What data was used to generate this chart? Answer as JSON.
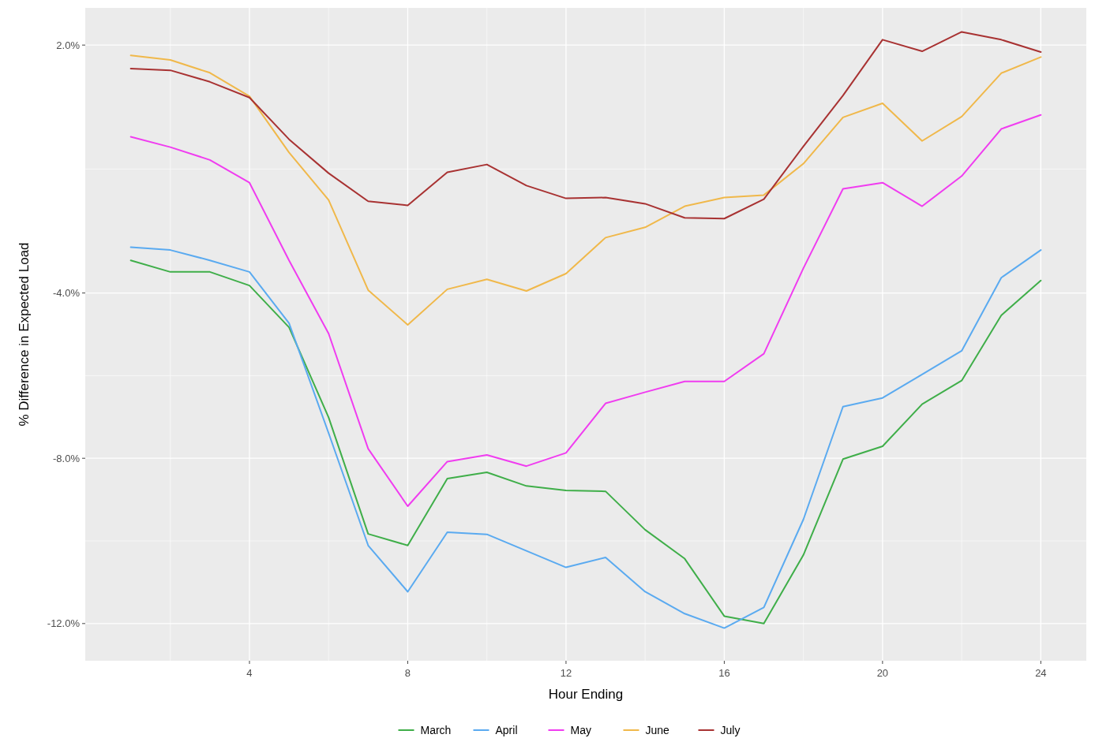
{
  "chart_data": {
    "type": "line",
    "xlabel": "Hour Ending",
    "ylabel": "% Difference in Expected Load",
    "x": [
      1,
      2,
      3,
      4,
      5,
      6,
      7,
      8,
      9,
      10,
      11,
      12,
      13,
      14,
      15,
      16,
      17,
      18,
      19,
      20,
      21,
      22,
      23,
      24
    ],
    "xlim": [
      -0.15,
      25.15
    ],
    "xticks": [
      4,
      8,
      12,
      16,
      20,
      24
    ],
    "ylim": [
      -12.9,
      2.9
    ],
    "yticks": [
      {
        "value": 2,
        "label": "2.0%"
      },
      {
        "value": -4,
        "label": "-4.0%"
      },
      {
        "value": -8,
        "label": "-8.0%"
      },
      {
        "value": -12,
        "label": "-12.0%"
      }
    ],
    "grid": true,
    "legend": "bottom",
    "marker": "none",
    "line_style": "solid",
    "series": [
      {
        "name": "March",
        "color": "#3fae49",
        "values": [
          -3.21,
          -3.49,
          -3.49,
          -3.82,
          -4.83,
          -7.01,
          -9.83,
          -10.11,
          -8.49,
          -8.34,
          -8.67,
          -8.78,
          -8.8,
          -9.73,
          -10.43,
          -11.82,
          -12.0,
          -10.34,
          -8.02,
          -7.71,
          -6.69,
          -6.12,
          -4.54,
          -3.7
        ]
      },
      {
        "name": "April",
        "color": "#5aaaf0",
        "values": [
          -2.89,
          -2.96,
          -3.21,
          -3.49,
          -4.73,
          -7.39,
          -10.11,
          -11.23,
          -9.79,
          -9.84,
          -10.24,
          -10.64,
          -10.4,
          -11.23,
          -11.76,
          -12.11,
          -11.61,
          -9.48,
          -6.75,
          -6.54,
          -5.97,
          -5.4,
          -3.63,
          -2.96
        ]
      },
      {
        "name": "May",
        "color": "#f03cf0",
        "values": [
          -0.22,
          -0.47,
          -0.78,
          -1.33,
          -3.21,
          -4.98,
          -7.77,
          -9.16,
          -8.08,
          -7.92,
          -8.19,
          -7.87,
          -6.67,
          -6.4,
          -6.14,
          -6.14,
          -5.47,
          -3.4,
          -1.48,
          -1.33,
          -1.9,
          -1.17,
          -0.03,
          0.31
        ]
      },
      {
        "name": "June",
        "color": "#f0b84a",
        "values": [
          1.75,
          1.64,
          1.33,
          0.76,
          -0.6,
          -1.75,
          -3.93,
          -4.77,
          -3.91,
          -3.67,
          -3.95,
          -3.53,
          -2.66,
          -2.41,
          -1.9,
          -1.69,
          -1.63,
          -0.87,
          0.25,
          0.59,
          -0.32,
          0.27,
          1.32,
          1.71
        ]
      },
      {
        "name": "July",
        "color": "#a83232",
        "values": [
          1.43,
          1.39,
          1.11,
          0.73,
          -0.28,
          -1.1,
          -1.78,
          -1.88,
          -1.08,
          -0.89,
          -1.4,
          -1.71,
          -1.69,
          -1.84,
          -2.18,
          -2.2,
          -1.73,
          -0.45,
          0.78,
          2.13,
          1.85,
          2.32,
          2.13,
          1.83
        ]
      }
    ]
  }
}
